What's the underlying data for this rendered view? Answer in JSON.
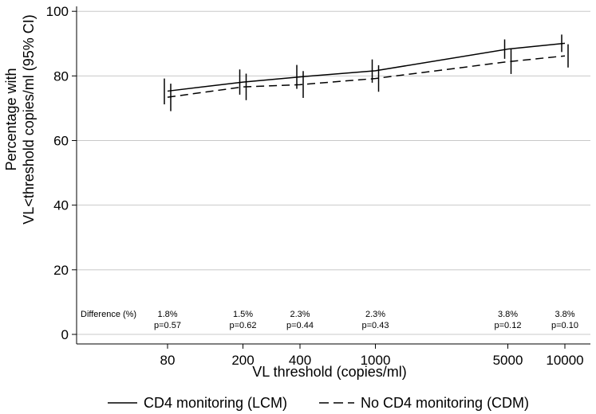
{
  "chart_data": {
    "type": "line",
    "xlabel": "VL threshold (copies/ml)",
    "ylabel_line1": "Percentage with",
    "ylabel_line2": "VL<threshold copies/ml (95% CI)",
    "x_scale": "log",
    "x": [
      80,
      200,
      400,
      1000,
      5000,
      10000
    ],
    "x_tick_labels": [
      "80",
      "200",
      "400",
      "1000",
      "5000",
      "10000"
    ],
    "y_ticks": [
      0,
      20,
      40,
      60,
      80,
      100
    ],
    "y_tick_labels": [
      "0",
      "20",
      "40",
      "60",
      "80",
      "100"
    ],
    "ylim": [
      -3,
      101
    ],
    "grid": true,
    "series": [
      {
        "name": "CD4 monitoring (LCM)",
        "style": "solid",
        "values": [
          75.3,
          78.1,
          79.7,
          81.6,
          88.3,
          90.1
        ],
        "ci_low": [
          71.2,
          74.2,
          76.0,
          77.9,
          85.3,
          87.4
        ],
        "ci_high": [
          79.2,
          82.0,
          83.4,
          85.1,
          91.3,
          92.8
        ]
      },
      {
        "name": "No CD4 monitoring (CDM)",
        "style": "dashed",
        "values": [
          73.4,
          76.6,
          77.3,
          79.2,
          84.4,
          86.2
        ],
        "ci_low": [
          69.1,
          72.5,
          73.2,
          75.1,
          80.6,
          82.6
        ],
        "ci_high": [
          77.6,
          80.7,
          81.5,
          83.3,
          88.3,
          89.8
        ]
      }
    ],
    "annotation_title": "Difference (%)",
    "differences": [
      {
        "diff": "1.8%",
        "p": "p=0.57"
      },
      {
        "diff": "1.5%",
        "p": "p=0.62"
      },
      {
        "diff": "2.3%",
        "p": "p=0.44"
      },
      {
        "diff": "2.3%",
        "p": "p=0.43"
      },
      {
        "diff": "3.8%",
        "p": "p=0.12"
      },
      {
        "diff": "3.8%",
        "p": "p=0.10"
      }
    ],
    "legend": [
      {
        "label": "CD4 monitoring (LCM)",
        "style": "solid"
      },
      {
        "label": "No CD4 monitoring (CDM)",
        "style": "dashed"
      }
    ],
    "legend_position": "bottom"
  }
}
